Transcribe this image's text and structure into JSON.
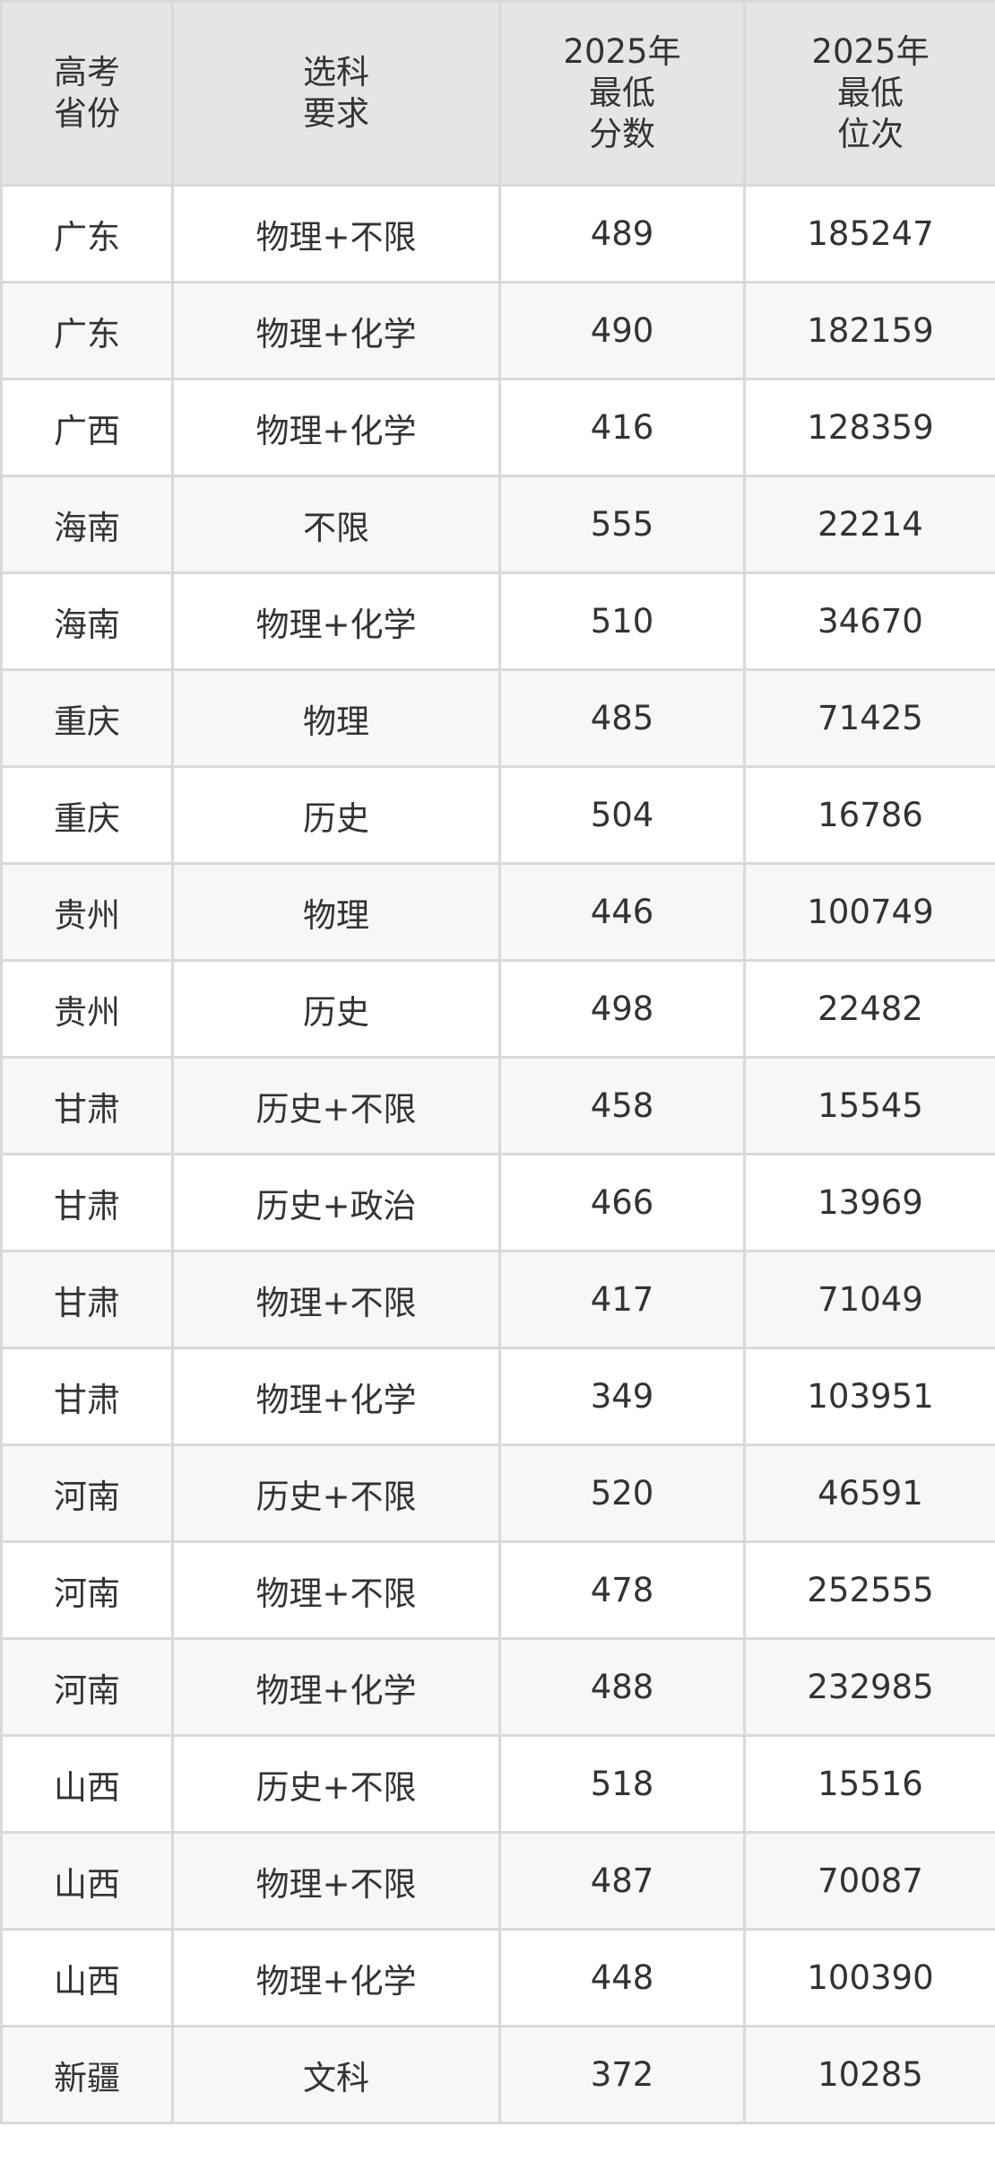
{
  "header": {
    "province": [
      "高考",
      "省份"
    ],
    "subject": [
      "选科",
      "要求"
    ],
    "score": [
      "2025年",
      "最低",
      "分数"
    ],
    "rank": [
      "2025年",
      "最低",
      "位次"
    ]
  },
  "rows": [
    [
      "广东",
      "物理+不限",
      "489",
      "185247"
    ],
    [
      "广东",
      "物理+化学",
      "490",
      "182159"
    ],
    [
      "广西",
      "物理+化学",
      "416",
      "128359"
    ],
    [
      "海南",
      "不限",
      "555",
      "22214"
    ],
    [
      "海南",
      "物理+化学",
      "510",
      "34670"
    ],
    [
      "重庆",
      "物理",
      "485",
      "71425"
    ],
    [
      "重庆",
      "历史",
      "504",
      "16786"
    ],
    [
      "贵州",
      "物理",
      "446",
      "100749"
    ],
    [
      "贵州",
      "历史",
      "498",
      "22482"
    ],
    [
      "甘肃",
      "历史+不限",
      "458",
      "15545"
    ],
    [
      "甘肃",
      "历史+政治",
      "466",
      "13969"
    ],
    [
      "甘肃",
      "物理+不限",
      "417",
      "71049"
    ],
    [
      "甘肃",
      "物理+化学",
      "349",
      "103951"
    ],
    [
      "河南",
      "历史+不限",
      "520",
      "46591"
    ],
    [
      "河南",
      "物理+不限",
      "478",
      "252555"
    ],
    [
      "河南",
      "物理+化学",
      "488",
      "232985"
    ],
    [
      "山西",
      "历史+不限",
      "518",
      "15516"
    ],
    [
      "山西",
      "物理+不限",
      "487",
      "70087"
    ],
    [
      "山西",
      "物理+化学",
      "448",
      "100390"
    ],
    [
      "新疆",
      "文科",
      "372",
      "10285"
    ]
  ]
}
